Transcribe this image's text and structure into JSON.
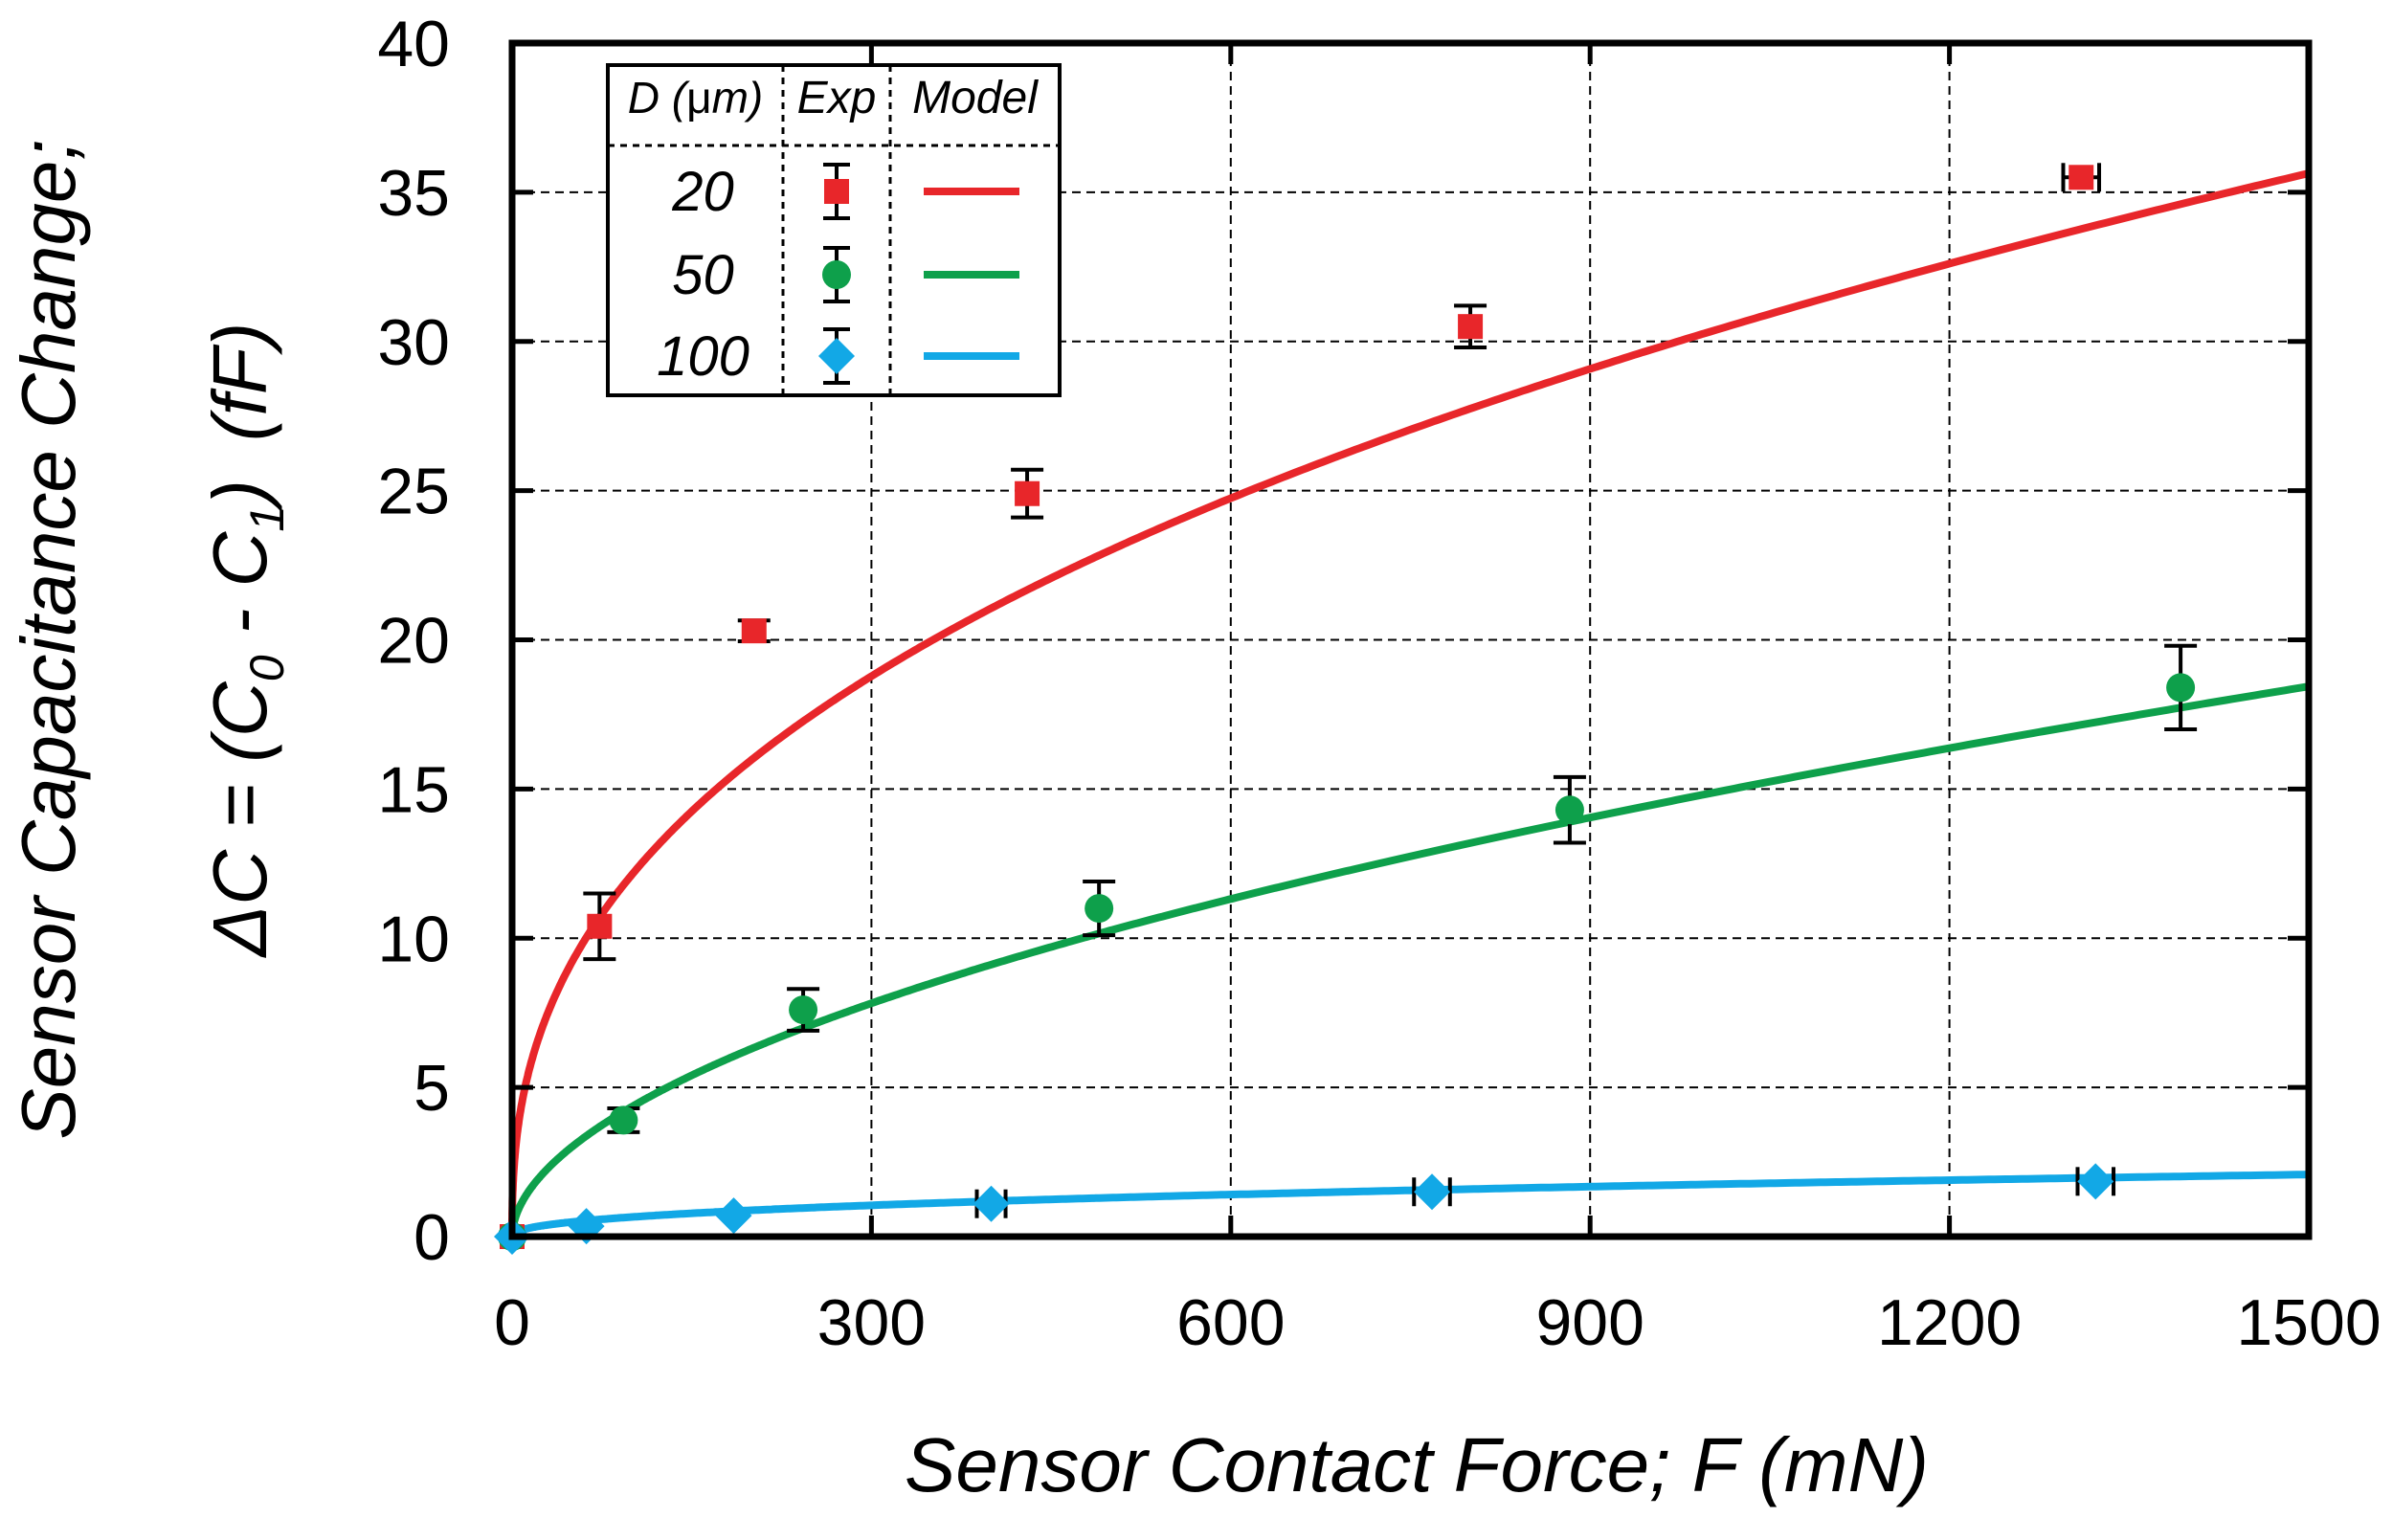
{
  "chart_data": {
    "type": "scatter",
    "xlabel": "Sensor Contact Force; F (mN)",
    "ylabel_line1": "Sensor Capacitance Change;",
    "ylabel_line2": {
      "pre": "ΔC = (C",
      "sub0": "0",
      "mid": " - C",
      "sub1": "1",
      "post": ")",
      "unit": "(fF)"
    },
    "xlim": [
      0,
      1500
    ],
    "ylim": [
      0,
      40
    ],
    "xticks": [
      0,
      300,
      600,
      900,
      1200,
      1500
    ],
    "yticks": [
      0,
      5,
      10,
      15,
      20,
      25,
      30,
      35,
      40
    ],
    "grid": true,
    "legend": {
      "placement": "top-left",
      "header_d": "D (",
      "header_mu": "μ",
      "header_m": "m)",
      "header_exp": "Exp",
      "header_model": "Model"
    },
    "series": [
      {
        "name": "20",
        "color": "#e8262a",
        "marker": "square",
        "points": [
          {
            "x": 0,
            "y": 0,
            "yerr": 0,
            "xerr": 0
          },
          {
            "x": 73,
            "y": 10.4,
            "yerr": 1.1,
            "xerr": 0
          },
          {
            "x": 202,
            "y": 20.3,
            "yerr": 0.35,
            "xerr": 0
          },
          {
            "x": 430,
            "y": 24.9,
            "yerr": 0.8,
            "xerr": 0
          },
          {
            "x": 800,
            "y": 30.5,
            "yerr": 0.7,
            "xerr": 0
          },
          {
            "x": 1310,
            "y": 35.5,
            "yerr": 0,
            "xerr": 15
          }
        ],
        "model": {
          "form": "a*x^b",
          "a": 1.94,
          "b": 0.398
        }
      },
      {
        "name": "50",
        "color": "#0ea04b",
        "marker": "circle",
        "points": [
          {
            "x": 0,
            "y": 0,
            "yerr": 0,
            "xerr": 0
          },
          {
            "x": 93,
            "y": 3.9,
            "yerr": 0.4,
            "xerr": 0
          },
          {
            "x": 243,
            "y": 7.6,
            "yerr": 0.7,
            "xerr": 0
          },
          {
            "x": 490,
            "y": 11.0,
            "yerr": 0.9,
            "xerr": 0
          },
          {
            "x": 883,
            "y": 14.3,
            "yerr": 1.1,
            "xerr": 0
          },
          {
            "x": 1393,
            "y": 18.4,
            "yerr": 1.4,
            "xerr": 0
          }
        ],
        "model": {
          "form": "a*x^b",
          "a": 0.374,
          "b": 0.533
        }
      },
      {
        "name": "100",
        "color": "#12a8e6",
        "marker": "diamond",
        "points": [
          {
            "x": 0,
            "y": 0,
            "yerr": 0,
            "xerr": 0
          },
          {
            "x": 62,
            "y": 0.35,
            "yerr": 0,
            "xerr": 0
          },
          {
            "x": 185,
            "y": 0.7,
            "yerr": 0,
            "xerr": 0
          },
          {
            "x": 400,
            "y": 1.1,
            "yerr": 0,
            "xerr": 12
          },
          {
            "x": 768,
            "y": 1.5,
            "yerr": 0,
            "xerr": 15
          },
          {
            "x": 1322,
            "y": 1.85,
            "yerr": 0,
            "xerr": 15
          }
        ],
        "model": {
          "form": "a*x^b",
          "a": 0.0923,
          "b": 0.426
        }
      }
    ]
  }
}
